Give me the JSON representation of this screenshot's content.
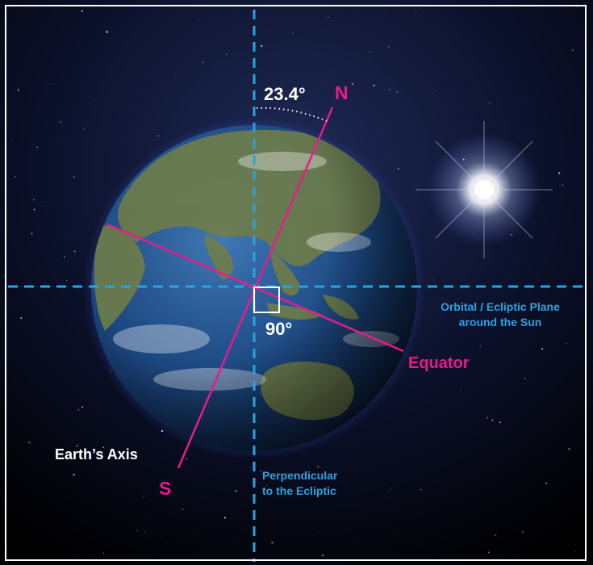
{
  "labels": {
    "north": "N",
    "south": "S",
    "tilt_angle": "23.4°",
    "right_angle": "90°",
    "equator": "Equator",
    "earth_axis": "Earth’s Axis",
    "orbital_plane_line1": "Orbital / Ecliptic Plane",
    "orbital_plane_line2": "around the Sun",
    "perpendicular_line1": "Perpendicular",
    "perpendicular_line2": "to the Ecliptic"
  },
  "colors": {
    "axis": "#ea1a8c",
    "reference_lines": "#2aa3e0",
    "text_white": "#ffffff",
    "space_top": "#1a2347",
    "space_bottom": "#000000",
    "ocean": "#1d4d86",
    "land": "#6e7e4a"
  },
  "icons": {
    "sun": "sun-glow-icon",
    "earth": "earth-globe-icon"
  }
}
